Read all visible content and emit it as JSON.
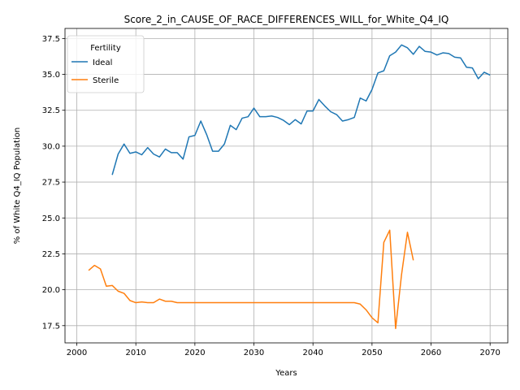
{
  "chart_data": {
    "type": "line",
    "title": "Score_2_in_CAUSE_OF_RACE_DIFFERENCES_WILL_for_White_Q4_IQ",
    "xlabel": "Years",
    "ylabel": "% of White Q4_IQ Population",
    "xlim": [
      1998,
      2073
    ],
    "ylim": [
      16.3,
      38.2
    ],
    "xticks": [
      2000,
      2010,
      2020,
      2030,
      2040,
      2050,
      2060,
      2070
    ],
    "yticks": [
      17.5,
      20.0,
      22.5,
      25.0,
      27.5,
      30.0,
      32.5,
      35.0,
      37.5
    ],
    "grid": true,
    "legend": {
      "title": "Fertility",
      "placement": "top-left"
    },
    "series": [
      {
        "name": "Ideal",
        "color": "#1f77b4",
        "x": [
          2006,
          2007,
          2008,
          2009,
          2010,
          2011,
          2012,
          2013,
          2014,
          2015,
          2016,
          2017,
          2018,
          2019,
          2020,
          2021,
          2022,
          2023,
          2024,
          2025,
          2026,
          2027,
          2028,
          2029,
          2030,
          2031,
          2032,
          2033,
          2034,
          2035,
          2036,
          2037,
          2038,
          2039,
          2040,
          2041,
          2042,
          2043,
          2044,
          2045,
          2046,
          2047,
          2048,
          2049,
          2050,
          2051,
          2052,
          2053,
          2054,
          2055,
          2056,
          2057,
          2058,
          2059,
          2060,
          2061,
          2062,
          2063,
          2064,
          2065,
          2066,
          2067,
          2068,
          2069,
          2070
        ],
        "values": [
          28.0,
          29.45,
          30.15,
          29.5,
          29.6,
          29.4,
          29.9,
          29.45,
          29.25,
          29.8,
          29.55,
          29.55,
          29.1,
          30.65,
          30.75,
          31.75,
          30.8,
          29.65,
          29.65,
          30.15,
          31.45,
          31.15,
          31.95,
          32.05,
          32.65,
          32.05,
          32.05,
          32.1,
          32.0,
          31.8,
          31.5,
          31.85,
          31.55,
          32.45,
          32.45,
          33.25,
          32.8,
          32.4,
          32.2,
          31.75,
          31.85,
          32.0,
          33.35,
          33.15,
          33.95,
          35.1,
          35.25,
          36.3,
          36.55,
          37.05,
          36.85,
          36.4,
          36.95,
          36.6,
          36.55,
          36.35,
          36.5,
          36.45,
          36.2,
          36.15,
          35.5,
          35.45,
          34.7,
          35.15,
          34.95
        ]
      },
      {
        "name": "Sterile",
        "color": "#ff7f0e",
        "x": [
          2002,
          2003,
          2004,
          2005,
          2006,
          2007,
          2008,
          2009,
          2010,
          2011,
          2012,
          2013,
          2014,
          2015,
          2016,
          2017,
          2018,
          2019,
          2020,
          2021,
          2022,
          2023,
          2024,
          2025,
          2026,
          2027,
          2028,
          2029,
          2030,
          2031,
          2032,
          2033,
          2034,
          2035,
          2036,
          2037,
          2038,
          2039,
          2040,
          2041,
          2042,
          2043,
          2044,
          2045,
          2046,
          2047,
          2048,
          2049,
          2050,
          2051,
          2052,
          2053,
          2054,
          2055,
          2056,
          2057
        ],
        "values": [
          21.35,
          21.7,
          21.45,
          20.25,
          20.3,
          19.9,
          19.75,
          19.25,
          19.1,
          19.15,
          19.1,
          19.1,
          19.35,
          19.2,
          19.2,
          19.1,
          19.1,
          19.1,
          19.1,
          19.1,
          19.1,
          19.1,
          19.1,
          19.1,
          19.1,
          19.1,
          19.1,
          19.1,
          19.1,
          19.1,
          19.1,
          19.1,
          19.1,
          19.1,
          19.1,
          19.1,
          19.1,
          19.1,
          19.1,
          19.1,
          19.1,
          19.1,
          19.1,
          19.1,
          19.1,
          19.1,
          19.0,
          18.6,
          18.05,
          17.7,
          23.3,
          24.15,
          17.3,
          21.05,
          24.0,
          22.05
        ]
      }
    ]
  }
}
